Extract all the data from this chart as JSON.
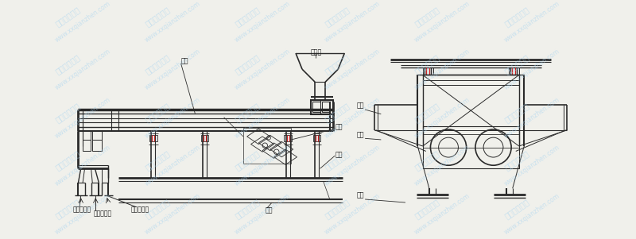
{
  "bg_color": "#f0f0eb",
  "line_color": "#2a2a2a",
  "red_color": "#cc2222",
  "wm_color": "#a8d4f0",
  "wm_texts": [
    "新乡千搏机械",
    "www.xxqianzhen.com"
  ],
  "labels": {
    "screen_box": "筛箱",
    "feed_inlet": "进料口",
    "vibration": "激质",
    "motor": "电机",
    "base": "底座",
    "coarse_outlet": "粗料出料口",
    "medium_outlet": "中料出料口",
    "fine_outlet": "细料出料口"
  }
}
